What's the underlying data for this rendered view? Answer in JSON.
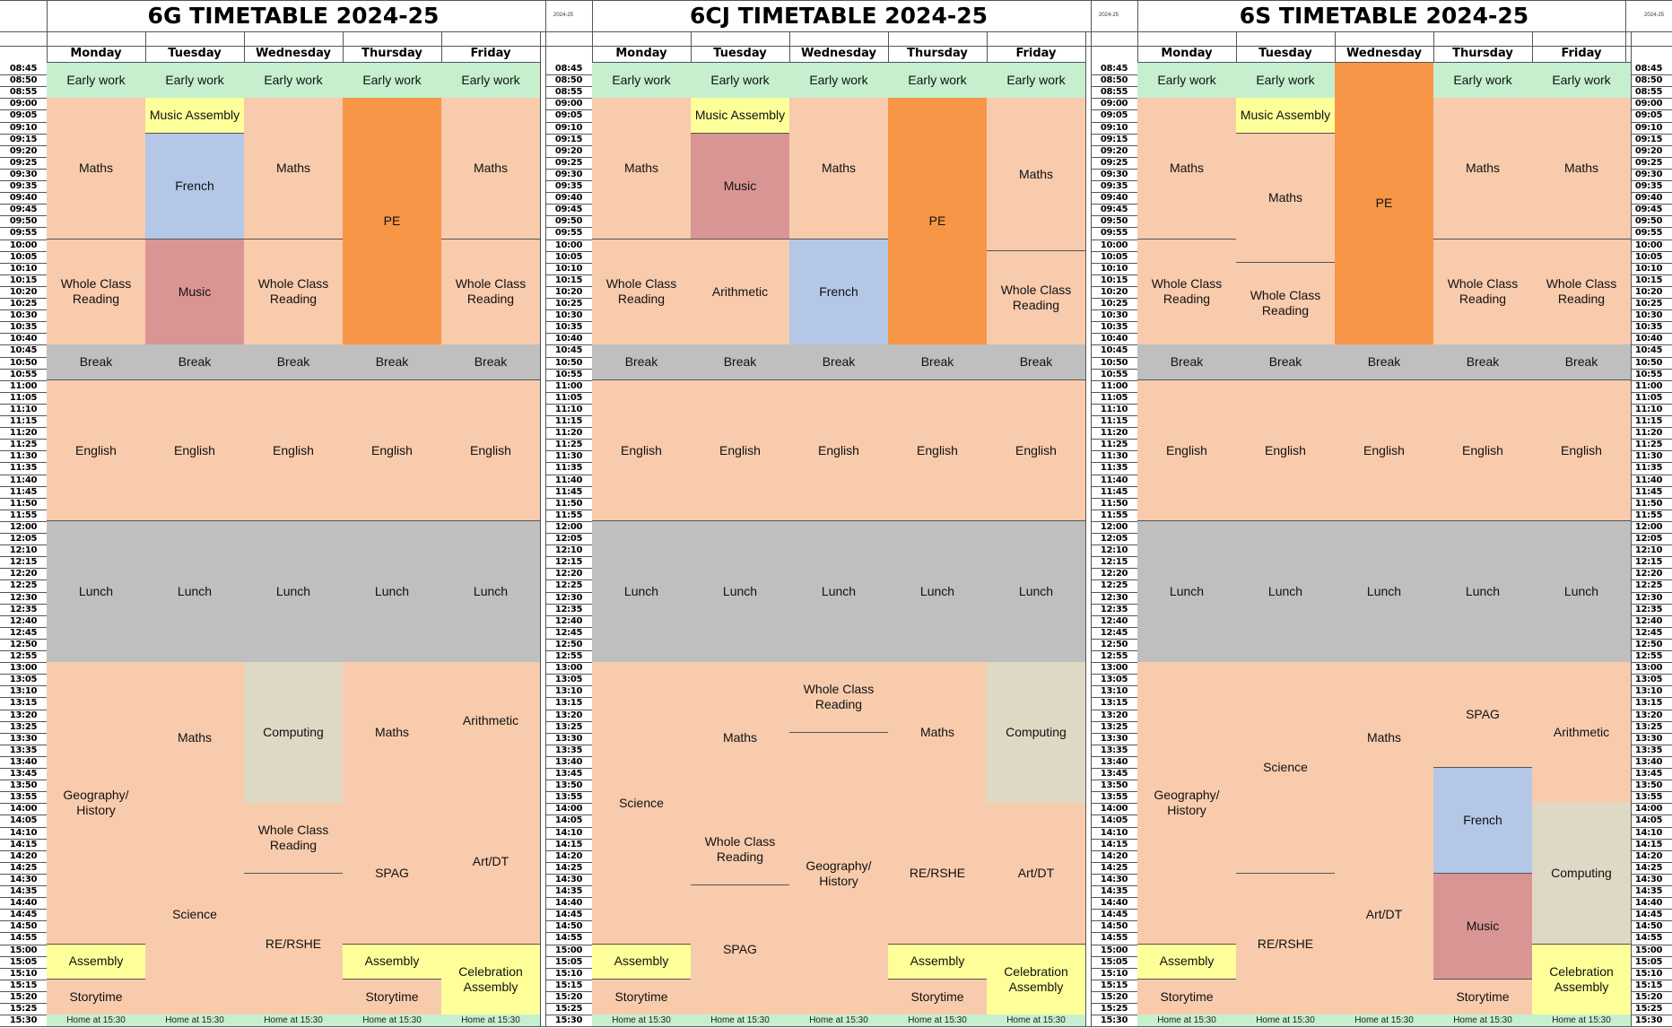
{
  "colors": {
    "early": "#c6efce",
    "lesson": "#f8cbad",
    "break": "#bfbfbf",
    "assembly": "#ffff99",
    "french": "#b4c7e7",
    "music": "#d99594",
    "pe": "#f79646",
    "computing": "#ddd9c4",
    "home": "#c6efce"
  },
  "time_slots": [
    "08:45",
    "08:50",
    "08:55",
    "09:00",
    "09:05",
    "09:10",
    "09:15",
    "09:20",
    "09:25",
    "09:30",
    "09:35",
    "09:40",
    "09:45",
    "09:50",
    "09:55",
    "10:00",
    "10:05",
    "10:10",
    "10:15",
    "10:20",
    "10:25",
    "10:30",
    "10:35",
    "10:40",
    "10:45",
    "10:50",
    "10:55",
    "11:00",
    "11:05",
    "11:10",
    "11:15",
    "11:20",
    "11:25",
    "11:30",
    "11:35",
    "11:40",
    "11:45",
    "11:50",
    "11:55",
    "12:00",
    "12:05",
    "12:10",
    "12:15",
    "12:20",
    "12:25",
    "12:30",
    "12:35",
    "12:40",
    "12:45",
    "12:50",
    "12:55",
    "13:00",
    "13:05",
    "13:10",
    "13:15",
    "13:20",
    "13:25",
    "13:30",
    "13:35",
    "13:40",
    "13:45",
    "13:50",
    "13:55",
    "14:00",
    "14:05",
    "14:10",
    "14:15",
    "14:20",
    "14:25",
    "14:30",
    "14:35",
    "14:40",
    "14:45",
    "14:50",
    "14:55",
    "15:00",
    "15:05",
    "15:10",
    "15:15",
    "15:20",
    "15:25",
    "15:30"
  ],
  "days": [
    "Monday",
    "Tuesday",
    "Wednesday",
    "Thursday",
    "Friday"
  ],
  "timetables": [
    {
      "title": "6G TIMETABLE 2024-25",
      "header_small": "2024-25",
      "days": [
        [
          [
            "Early work",
            0,
            3,
            "early"
          ],
          [
            "Maths",
            3,
            15,
            "lesson"
          ],
          [
            "Whole Class Reading",
            15,
            24,
            "lesson"
          ],
          [
            "Break",
            24,
            27,
            "break"
          ],
          [
            "English",
            27,
            39,
            "lesson"
          ],
          [
            "Lunch",
            39,
            51,
            "break"
          ],
          [
            "Geography/ History",
            51,
            75,
            "lesson"
          ],
          [
            "Assembly",
            75,
            78,
            "assembly"
          ],
          [
            "Storytime",
            78,
            81,
            "lesson"
          ],
          [
            "Home at 15:30",
            81,
            82,
            "home"
          ]
        ],
        [
          [
            "Early work",
            0,
            3,
            "early"
          ],
          [
            "Music Assembly",
            3,
            6,
            "assembly"
          ],
          [
            "French",
            6,
            15,
            "french"
          ],
          [
            "Music",
            15,
            24,
            "music"
          ],
          [
            "Break",
            24,
            27,
            "break"
          ],
          [
            "English",
            27,
            39,
            "lesson"
          ],
          [
            "Lunch",
            39,
            51,
            "break"
          ],
          [
            "Maths",
            51,
            64,
            "lesson"
          ],
          [
            "Science",
            64,
            81,
            "lesson"
          ],
          [
            "Home at 15:30",
            81,
            82,
            "home"
          ]
        ],
        [
          [
            "Early work",
            0,
            3,
            "early"
          ],
          [
            "Maths",
            3,
            15,
            "lesson"
          ],
          [
            "Whole Class Reading",
            15,
            24,
            "lesson"
          ],
          [
            "Break",
            24,
            27,
            "break"
          ],
          [
            "English",
            27,
            39,
            "lesson"
          ],
          [
            "Lunch",
            39,
            51,
            "break"
          ],
          [
            "Computing",
            51,
            63,
            "computing"
          ],
          [
            "Whole Class Reading",
            63,
            69,
            "lesson"
          ],
          [
            "RE/RSHE",
            69,
            81,
            "lesson"
          ],
          [
            "Home at 15:30",
            81,
            82,
            "home"
          ]
        ],
        [
          [
            "Early work",
            0,
            3,
            "early"
          ],
          [
            "PE",
            3,
            24,
            "pe"
          ],
          [
            "Break",
            24,
            27,
            "break"
          ],
          [
            "English",
            27,
            39,
            "lesson"
          ],
          [
            "Lunch",
            39,
            51,
            "break"
          ],
          [
            "Maths",
            51,
            63,
            "lesson"
          ],
          [
            "SPAG",
            63,
            75,
            "lesson"
          ],
          [
            "Assembly",
            75,
            78,
            "assembly"
          ],
          [
            "Storytime",
            78,
            81,
            "lesson"
          ],
          [
            "Home at 15:30",
            81,
            82,
            "home"
          ]
        ],
        [
          [
            "Early work",
            0,
            3,
            "early"
          ],
          [
            "Maths",
            3,
            15,
            "lesson"
          ],
          [
            "Whole Class Reading",
            15,
            24,
            "lesson"
          ],
          [
            "Break",
            24,
            27,
            "break"
          ],
          [
            "English",
            27,
            39,
            "lesson"
          ],
          [
            "Lunch",
            39,
            51,
            "break"
          ],
          [
            "Arithmetic",
            51,
            61,
            "lesson"
          ],
          [
            "Art/DT",
            61,
            75,
            "lesson"
          ],
          [
            "Celebration Assembly",
            75,
            81,
            "assembly"
          ],
          [
            "Home at 15:30",
            81,
            82,
            "home"
          ]
        ]
      ]
    },
    {
      "title": "6CJ TIMETABLE 2024-25",
      "header_small": "2024-25",
      "days": [
        [
          [
            "Early work",
            0,
            3,
            "early"
          ],
          [
            "Maths",
            3,
            15,
            "lesson"
          ],
          [
            "Whole Class Reading",
            15,
            24,
            "lesson"
          ],
          [
            "Break",
            24,
            27,
            "break"
          ],
          [
            "English",
            27,
            39,
            "lesson"
          ],
          [
            "Lunch",
            39,
            51,
            "break"
          ],
          [
            "Science",
            51,
            75,
            "lesson"
          ],
          [
            "Assembly",
            75,
            78,
            "assembly"
          ],
          [
            "Storytime",
            78,
            81,
            "lesson"
          ],
          [
            "Home at 15:30",
            81,
            82,
            "home"
          ]
        ],
        [
          [
            "Early work",
            0,
            3,
            "early"
          ],
          [
            "Music Assembly",
            3,
            6,
            "assembly"
          ],
          [
            "Music",
            6,
            15,
            "music"
          ],
          [
            "Arithmetic",
            15,
            24,
            "lesson"
          ],
          [
            "Break",
            24,
            27,
            "break"
          ],
          [
            "English",
            27,
            39,
            "lesson"
          ],
          [
            "Lunch",
            39,
            51,
            "break"
          ],
          [
            "Maths",
            51,
            64,
            "lesson"
          ],
          [
            "Whole Class Reading",
            64,
            70,
            "lesson"
          ],
          [
            "SPAG",
            70,
            81,
            "lesson"
          ],
          [
            "Home at 15:30",
            81,
            82,
            "home"
          ]
        ],
        [
          [
            "Early work",
            0,
            3,
            "early"
          ],
          [
            "Maths",
            3,
            15,
            "lesson"
          ],
          [
            "French",
            15,
            24,
            "french"
          ],
          [
            "Break",
            24,
            27,
            "break"
          ],
          [
            "English",
            27,
            39,
            "lesson"
          ],
          [
            "Lunch",
            39,
            51,
            "break"
          ],
          [
            "Whole Class Reading",
            51,
            57,
            "lesson"
          ],
          [
            "Geography/ History",
            57,
            81,
            "lesson"
          ],
          [
            "Home at 15:30",
            81,
            82,
            "home"
          ]
        ],
        [
          [
            "Early work",
            0,
            3,
            "early"
          ],
          [
            "PE",
            3,
            24,
            "pe"
          ],
          [
            "Break",
            24,
            27,
            "break"
          ],
          [
            "English",
            27,
            39,
            "lesson"
          ],
          [
            "Lunch",
            39,
            51,
            "break"
          ],
          [
            "Maths",
            51,
            63,
            "lesson"
          ],
          [
            "RE/RSHE",
            63,
            75,
            "lesson"
          ],
          [
            "Assembly",
            75,
            78,
            "assembly"
          ],
          [
            "Storytime",
            78,
            81,
            "lesson"
          ],
          [
            "Home at 15:30",
            81,
            82,
            "home"
          ]
        ],
        [
          [
            "Early work",
            0,
            3,
            "early"
          ],
          [
            "Maths",
            3,
            16,
            "lesson"
          ],
          [
            "Whole Class Reading",
            16,
            24,
            "lesson"
          ],
          [
            "Break",
            24,
            27,
            "break"
          ],
          [
            "English",
            27,
            39,
            "lesson"
          ],
          [
            "Lunch",
            39,
            51,
            "break"
          ],
          [
            "Computing",
            51,
            63,
            "computing"
          ],
          [
            "Art/DT",
            63,
            75,
            "lesson"
          ],
          [
            "Celebration Assembly",
            75,
            81,
            "assembly"
          ],
          [
            "Home at 15:30",
            81,
            82,
            "home"
          ]
        ]
      ]
    },
    {
      "title": "6S TIMETABLE 2024-25",
      "header_small": "2024-25",
      "days": [
        [
          [
            "Early work",
            0,
            3,
            "early"
          ],
          [
            "Maths",
            3,
            15,
            "lesson"
          ],
          [
            "Whole Class Reading",
            15,
            24,
            "lesson"
          ],
          [
            "Break",
            24,
            27,
            "break"
          ],
          [
            "English",
            27,
            39,
            "lesson"
          ],
          [
            "Lunch",
            39,
            51,
            "break"
          ],
          [
            "Geography/ History",
            51,
            75,
            "lesson"
          ],
          [
            "Assembly",
            75,
            78,
            "assembly"
          ],
          [
            "Storytime",
            78,
            81,
            "lesson"
          ],
          [
            "Home at 15:30",
            81,
            82,
            "home"
          ]
        ],
        [
          [
            "Early work",
            0,
            3,
            "early"
          ],
          [
            "Music Assembly",
            3,
            6,
            "assembly"
          ],
          [
            "Maths",
            6,
            17,
            "lesson"
          ],
          [
            "Whole Class Reading",
            17,
            24,
            "lesson"
          ],
          [
            "Break",
            24,
            27,
            "break"
          ],
          [
            "English",
            27,
            39,
            "lesson"
          ],
          [
            "Lunch",
            39,
            51,
            "break"
          ],
          [
            "Science",
            51,
            69,
            "lesson"
          ],
          [
            "RE/RSHE",
            69,
            81,
            "lesson"
          ],
          [
            "Home at 15:30",
            81,
            82,
            "home"
          ]
        ],
        [
          [
            "PE",
            0,
            24,
            "pe"
          ],
          [
            "Break",
            24,
            27,
            "break"
          ],
          [
            "English",
            27,
            39,
            "lesson"
          ],
          [
            "Lunch",
            39,
            51,
            "break"
          ],
          [
            "Maths",
            51,
            64,
            "lesson"
          ],
          [
            "Art/DT",
            64,
            81,
            "lesson"
          ],
          [
            "Home at 15:30",
            81,
            82,
            "home"
          ]
        ],
        [
          [
            "Early work",
            0,
            3,
            "early"
          ],
          [
            "Maths",
            3,
            15,
            "lesson"
          ],
          [
            "Whole Class Reading",
            15,
            24,
            "lesson"
          ],
          [
            "Break",
            24,
            27,
            "break"
          ],
          [
            "English",
            27,
            39,
            "lesson"
          ],
          [
            "Lunch",
            39,
            51,
            "break"
          ],
          [
            "SPAG",
            51,
            60,
            "lesson"
          ],
          [
            "French",
            60,
            69,
            "french"
          ],
          [
            "Music",
            69,
            78,
            "music"
          ],
          [
            "Storytime",
            78,
            81,
            "lesson"
          ],
          [
            "Home at 15:30",
            81,
            82,
            "home"
          ]
        ],
        [
          [
            "Early work",
            0,
            3,
            "early"
          ],
          [
            "Maths",
            3,
            15,
            "lesson"
          ],
          [
            "Whole Class Reading",
            15,
            24,
            "lesson"
          ],
          [
            "Break",
            24,
            27,
            "break"
          ],
          [
            "English",
            27,
            39,
            "lesson"
          ],
          [
            "Lunch",
            39,
            51,
            "break"
          ],
          [
            "Arithmetic",
            51,
            63,
            "lesson"
          ],
          [
            "Computing",
            63,
            75,
            "computing"
          ],
          [
            "Celebration Assembly",
            75,
            81,
            "assembly"
          ],
          [
            "Home at 15:30",
            81,
            82,
            "home"
          ]
        ]
      ]
    }
  ]
}
